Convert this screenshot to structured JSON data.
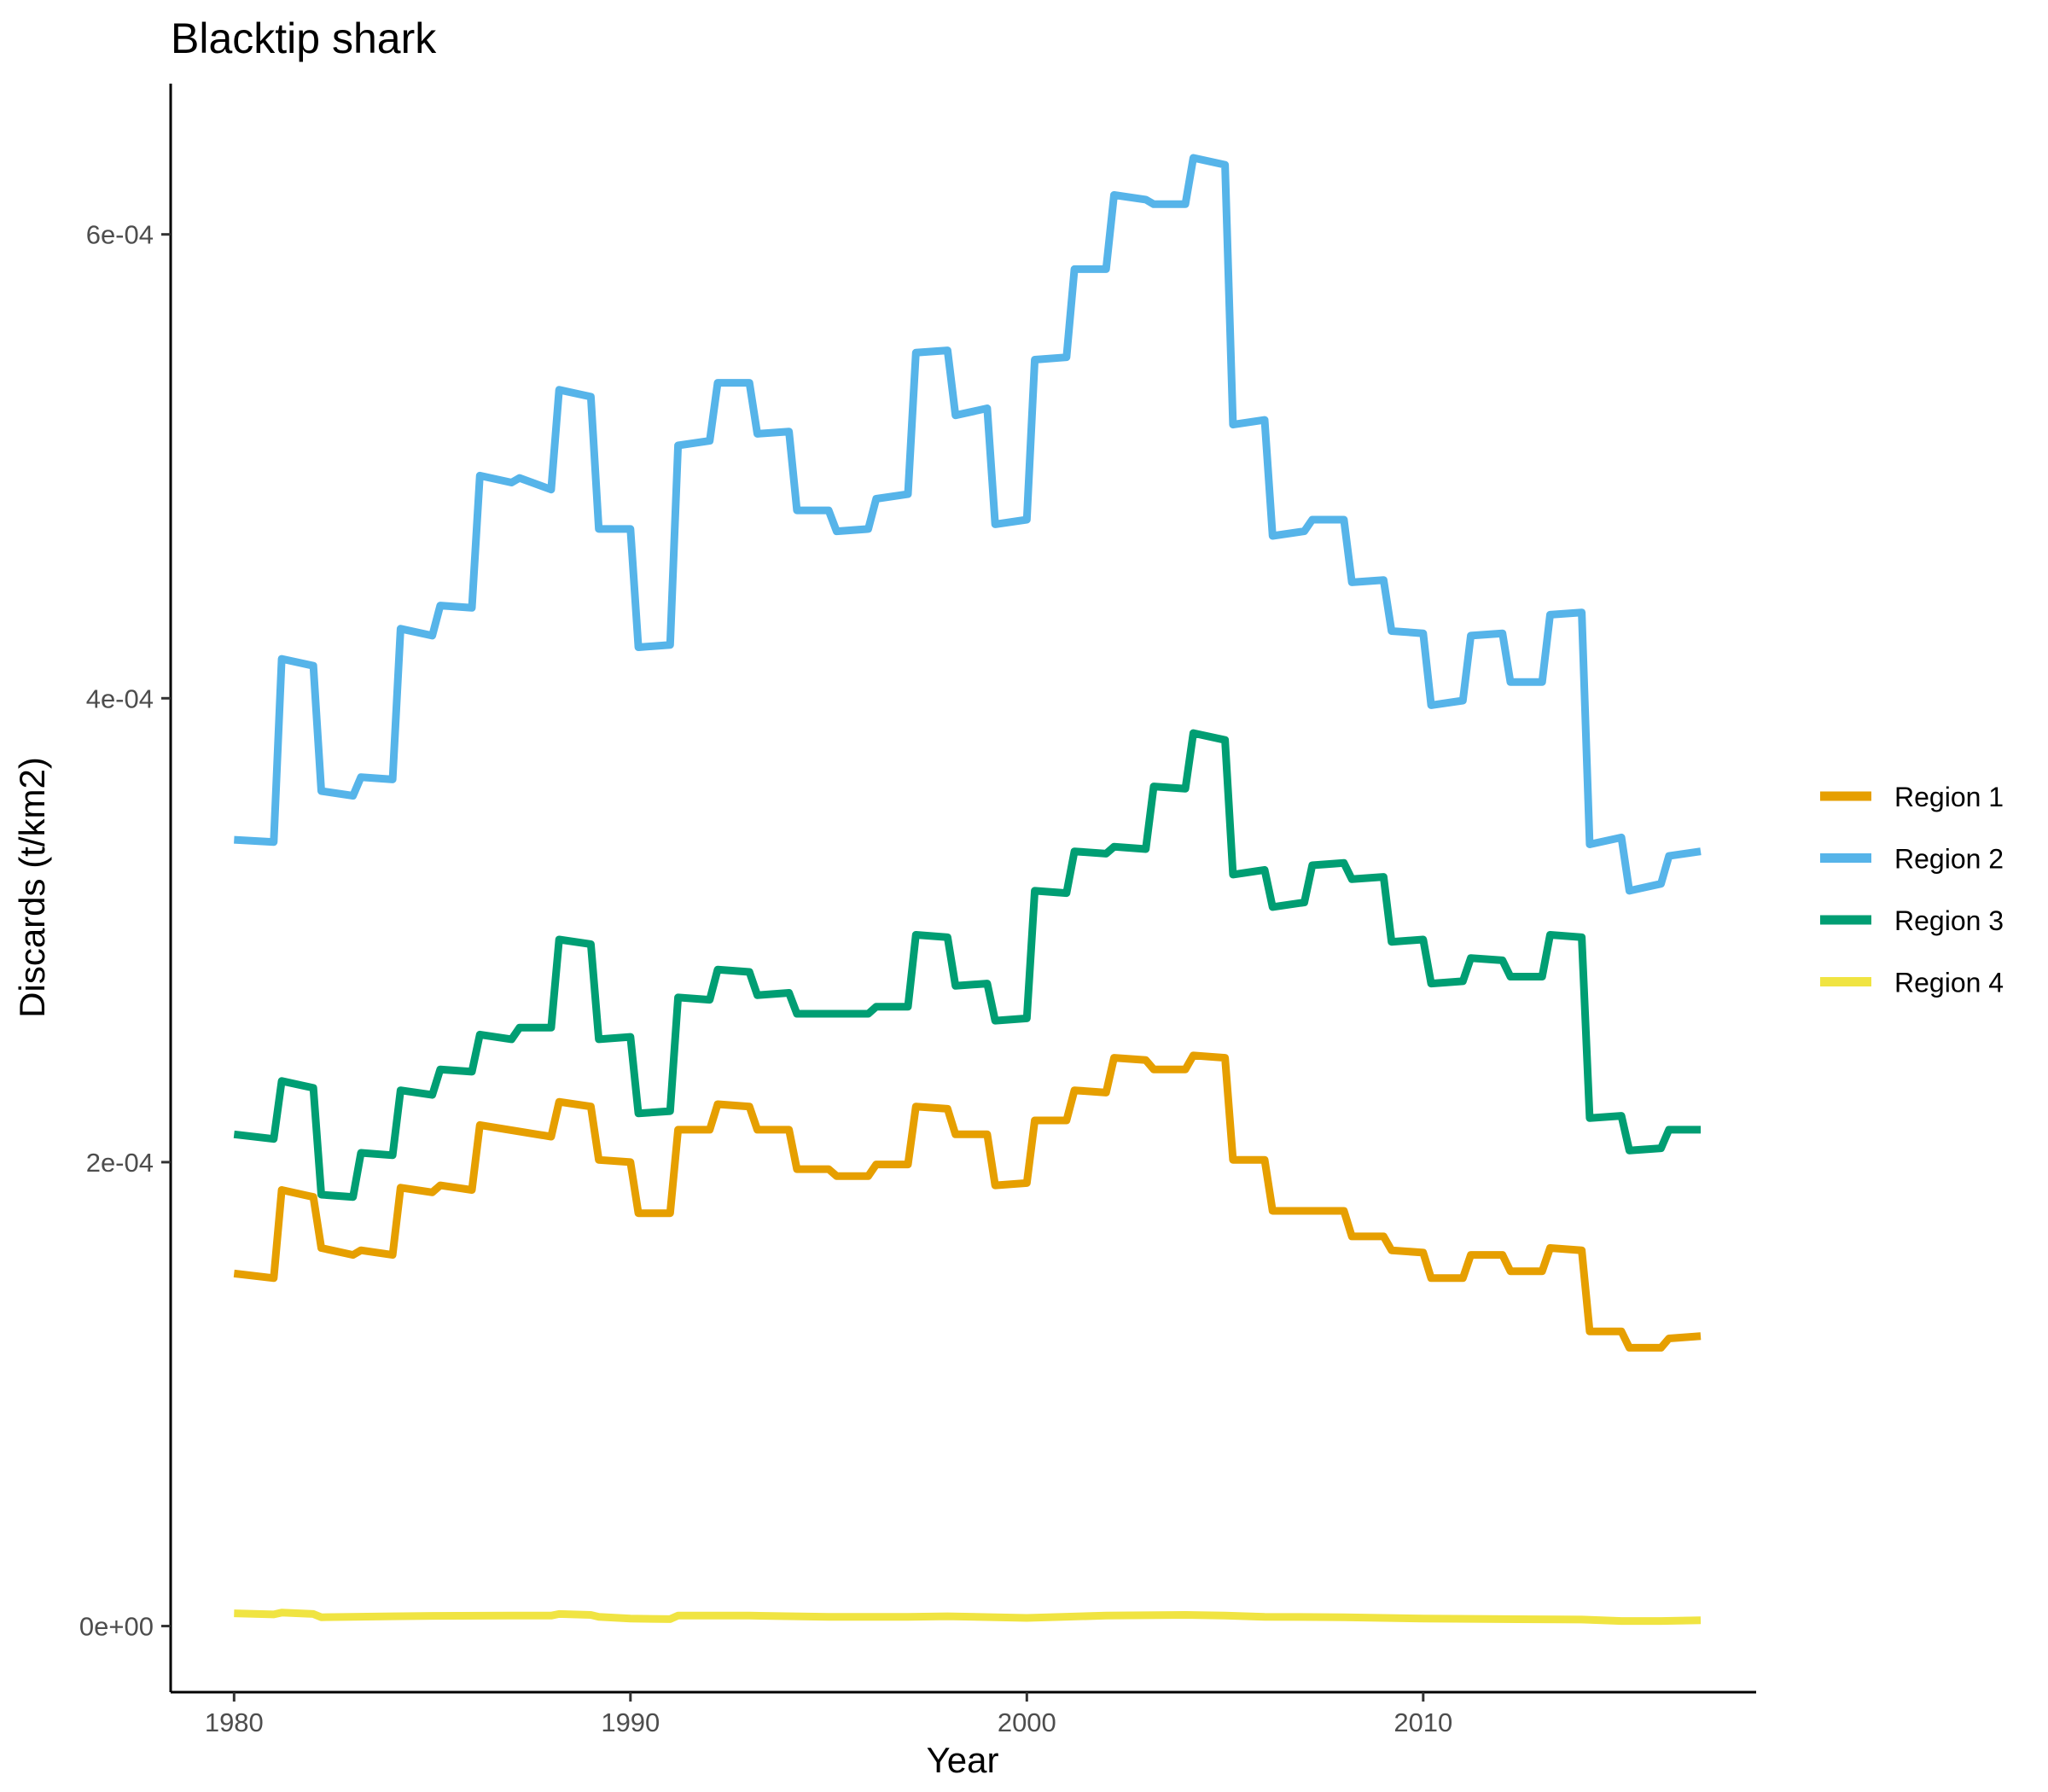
{
  "chart_data": {
    "type": "line",
    "title": "Blacktip shark",
    "xlabel": "Year",
    "ylabel": "Discards (t/km2)",
    "xlim": [
      1978.4,
      2018.4
    ],
    "ylim": [
      -2.85e-05,
      0.000665
    ],
    "x_ticks": [
      1980,
      1990,
      2000,
      2010
    ],
    "x_tick_labels": [
      "1980",
      "1990",
      "2000",
      "2010"
    ],
    "y_ticks": [
      0,
      0.0002,
      0.0004,
      0.0006
    ],
    "y_tick_labels": [
      "0e+00",
      "2e-04",
      "4e-04",
      "6e-04"
    ],
    "grid": false,
    "legend": {
      "position": "right"
    },
    "series": [
      {
        "name": "Region 1",
        "color": "#E69F00",
        "points": [
          [
            1980,
            0.000152
          ],
          [
            1981,
            0.00015
          ],
          [
            1981.2,
            0.000188
          ],
          [
            1982,
            0.000185
          ],
          [
            1982.2,
            0.000163
          ],
          [
            1983,
            0.00016
          ],
          [
            1983.2,
            0.000162
          ],
          [
            1984,
            0.00016
          ],
          [
            1984.2,
            0.000189
          ],
          [
            1985,
            0.000187
          ],
          [
            1985.2,
            0.00019
          ],
          [
            1986,
            0.000188
          ],
          [
            1986.2,
            0.000216
          ],
          [
            1988,
            0.000211
          ],
          [
            1988.2,
            0.000226
          ],
          [
            1989,
            0.000224
          ],
          [
            1989.2,
            0.000201
          ],
          [
            1990,
            0.0002
          ],
          [
            1990.2,
            0.000178
          ],
          [
            1991,
            0.000178
          ],
          [
            1991.2,
            0.000214
          ],
          [
            1992,
            0.000214
          ],
          [
            1992.2,
            0.000225
          ],
          [
            1993,
            0.000224
          ],
          [
            1993.2,
            0.000214
          ],
          [
            1994,
            0.000214
          ],
          [
            1994.2,
            0.000197
          ],
          [
            1995,
            0.000197
          ],
          [
            1995.2,
            0.000194
          ],
          [
            1996,
            0.000194
          ],
          [
            1996.2,
            0.000199
          ],
          [
            1997,
            0.000199
          ],
          [
            1997.2,
            0.000224
          ],
          [
            1998,
            0.000223
          ],
          [
            1998.2,
            0.000212
          ],
          [
            1999,
            0.000212
          ],
          [
            1999.2,
            0.00019
          ],
          [
            2000,
            0.000191
          ],
          [
            2000.2,
            0.000218
          ],
          [
            2001,
            0.000218
          ],
          [
            2001.2,
            0.000231
          ],
          [
            2002,
            0.00023
          ],
          [
            2002.2,
            0.000245
          ],
          [
            2003,
            0.000244
          ],
          [
            2003.2,
            0.00024
          ],
          [
            2004,
            0.00024
          ],
          [
            2004.2,
            0.000246
          ],
          [
            2005,
            0.000245
          ],
          [
            2005.2,
            0.000201
          ],
          [
            2006,
            0.000201
          ],
          [
            2006.2,
            0.000179
          ],
          [
            2008,
            0.000179
          ],
          [
            2008.2,
            0.000168
          ],
          [
            2009,
            0.000168
          ],
          [
            2009.2,
            0.000162
          ],
          [
            2010,
            0.000161
          ],
          [
            2010.2,
            0.00015
          ],
          [
            2011,
            0.00015
          ],
          [
            2011.2,
            0.00016
          ],
          [
            2012,
            0.00016
          ],
          [
            2012.2,
            0.000153
          ],
          [
            2013,
            0.000153
          ],
          [
            2013.2,
            0.000163
          ],
          [
            2014,
            0.000162
          ],
          [
            2014.2,
            0.000127
          ],
          [
            2015,
            0.000127
          ],
          [
            2015.2,
            0.00012
          ],
          [
            2016,
            0.00012
          ],
          [
            2016.2,
            0.000124
          ],
          [
            2017,
            0.000125
          ]
        ]
      },
      {
        "name": "Region 2",
        "color": "#56B4E9",
        "points": [
          [
            1980,
            0.000339
          ],
          [
            1981,
            0.000338
          ],
          [
            1981.2,
            0.000417
          ],
          [
            1982,
            0.000414
          ],
          [
            1982.2,
            0.00036
          ],
          [
            1983,
            0.000358
          ],
          [
            1983.2,
            0.000366
          ],
          [
            1984,
            0.000365
          ],
          [
            1984.2,
            0.00043
          ],
          [
            1985,
            0.000427
          ],
          [
            1985.2,
            0.00044
          ],
          [
            1986,
            0.000439
          ],
          [
            1986.2,
            0.000496
          ],
          [
            1987,
            0.000493
          ],
          [
            1987.2,
            0.000495
          ],
          [
            1988,
            0.00049
          ],
          [
            1988.2,
            0.000533
          ],
          [
            1989,
            0.00053
          ],
          [
            1989.2,
            0.000473
          ],
          [
            1990,
            0.000473
          ],
          [
            1990.2,
            0.000422
          ],
          [
            1991,
            0.000423
          ],
          [
            1991.2,
            0.000509
          ],
          [
            1992,
            0.000511
          ],
          [
            1992.2,
            0.000536
          ],
          [
            1993,
            0.000536
          ],
          [
            1993.2,
            0.000514
          ],
          [
            1994,
            0.000515
          ],
          [
            1994.2,
            0.000481
          ],
          [
            1995,
            0.000481
          ],
          [
            1995.2,
            0.000472
          ],
          [
            1996,
            0.000473
          ],
          [
            1996.2,
            0.000486
          ],
          [
            1997,
            0.000488
          ],
          [
            1997.2,
            0.000549
          ],
          [
            1998,
            0.00055
          ],
          [
            1998.2,
            0.000522
          ],
          [
            1999,
            0.000525
          ],
          [
            1999.2,
            0.000475
          ],
          [
            2000,
            0.000477
          ],
          [
            2000.2,
            0.000546
          ],
          [
            2001,
            0.000547
          ],
          [
            2001.2,
            0.000585
          ],
          [
            2002,
            0.000585
          ],
          [
            2002.2,
            0.000617
          ],
          [
            2003,
            0.000615
          ],
          [
            2003.2,
            0.000613
          ],
          [
            2004,
            0.000613
          ],
          [
            2004.2,
            0.000633
          ],
          [
            2005,
            0.00063
          ],
          [
            2005.2,
            0.000518
          ],
          [
            2006,
            0.00052
          ],
          [
            2006.2,
            0.00047
          ],
          [
            2007,
            0.000472
          ],
          [
            2007.2,
            0.000477
          ],
          [
            2008,
            0.000477
          ],
          [
            2008.2,
            0.00045
          ],
          [
            2009,
            0.000451
          ],
          [
            2009.2,
            0.000429
          ],
          [
            2010,
            0.000428
          ],
          [
            2010.2,
            0.000397
          ],
          [
            2011,
            0.000399
          ],
          [
            2011.2,
            0.000427
          ],
          [
            2012,
            0.000428
          ],
          [
            2012.2,
            0.000407
          ],
          [
            2013,
            0.000407
          ],
          [
            2013.2,
            0.000436
          ],
          [
            2014,
            0.000437
          ],
          [
            2014.2,
            0.000337
          ],
          [
            2015,
            0.00034
          ],
          [
            2015.2,
            0.000317
          ],
          [
            2016,
            0.00032
          ],
          [
            2016.2,
            0.000332
          ],
          [
            2017,
            0.000334
          ]
        ]
      },
      {
        "name": "Region 3",
        "color": "#009E73",
        "points": [
          [
            1980,
            0.000212
          ],
          [
            1981,
            0.00021
          ],
          [
            1981.2,
            0.000235
          ],
          [
            1982,
            0.000232
          ],
          [
            1982.2,
            0.000186
          ],
          [
            1983,
            0.000185
          ],
          [
            1983.2,
            0.000204
          ],
          [
            1984,
            0.000203
          ],
          [
            1984.2,
            0.000231
          ],
          [
            1985,
            0.000229
          ],
          [
            1985.2,
            0.00024
          ],
          [
            1986,
            0.000239
          ],
          [
            1986.2,
            0.000255
          ],
          [
            1987,
            0.000253
          ],
          [
            1987.2,
            0.000258
          ],
          [
            1988,
            0.000258
          ],
          [
            1988.2,
            0.000296
          ],
          [
            1989,
            0.000294
          ],
          [
            1989.2,
            0.000253
          ],
          [
            1990,
            0.000254
          ],
          [
            1990.2,
            0.000221
          ],
          [
            1991,
            0.000222
          ],
          [
            1991.2,
            0.000271
          ],
          [
            1992,
            0.00027
          ],
          [
            1992.2,
            0.000283
          ],
          [
            1993,
            0.000282
          ],
          [
            1993.2,
            0.000272
          ],
          [
            1994,
            0.000273
          ],
          [
            1994.2,
            0.000264
          ],
          [
            1995,
            0.000264
          ],
          [
            1995.2,
            0.000264
          ],
          [
            1996,
            0.000264
          ],
          [
            1996.2,
            0.000267
          ],
          [
            1997,
            0.000267
          ],
          [
            1997.2,
            0.000298
          ],
          [
            1998,
            0.000297
          ],
          [
            1998.2,
            0.000276
          ],
          [
            1999,
            0.000277
          ],
          [
            1999.2,
            0.000261
          ],
          [
            2000,
            0.000262
          ],
          [
            2000.2,
            0.000317
          ],
          [
            2001,
            0.000316
          ],
          [
            2001.2,
            0.000334
          ],
          [
            2002,
            0.000333
          ],
          [
            2002.2,
            0.000336
          ],
          [
            2003,
            0.000335
          ],
          [
            2003.2,
            0.000362
          ],
          [
            2004,
            0.000361
          ],
          [
            2004.2,
            0.000385
          ],
          [
            2005,
            0.000382
          ],
          [
            2005.2,
            0.000324
          ],
          [
            2006,
            0.000326
          ],
          [
            2006.2,
            0.00031
          ],
          [
            2007,
            0.000312
          ],
          [
            2007.2,
            0.000328
          ],
          [
            2008,
            0.000329
          ],
          [
            2008.2,
            0.000322
          ],
          [
            2009,
            0.000323
          ],
          [
            2009.2,
            0.000295
          ],
          [
            2010,
            0.000296
          ],
          [
            2010.2,
            0.000277
          ],
          [
            2011,
            0.000278
          ],
          [
            2011.2,
            0.000288
          ],
          [
            2012,
            0.000287
          ],
          [
            2012.2,
            0.00028
          ],
          [
            2013,
            0.00028
          ],
          [
            2013.2,
            0.000298
          ],
          [
            2014,
            0.000297
          ],
          [
            2014.2,
            0.000219
          ],
          [
            2015,
            0.00022
          ],
          [
            2015.2,
            0.000205
          ],
          [
            2016,
            0.000206
          ],
          [
            2016.2,
            0.000214
          ],
          [
            2017,
            0.000214
          ]
        ]
      },
      {
        "name": "Region 4",
        "color": "#F0E442",
        "points": [
          [
            1980,
            5.5e-06
          ],
          [
            1981,
            5e-06
          ],
          [
            1981.2,
            5.8e-06
          ],
          [
            1982,
            5.2e-06
          ],
          [
            1982.2,
            3.8e-06
          ],
          [
            1984,
            4.2e-06
          ],
          [
            1985,
            4.4e-06
          ],
          [
            1987,
            4.5e-06
          ],
          [
            1988,
            4.5e-06
          ],
          [
            1988.2,
            5.2e-06
          ],
          [
            1989,
            4.8e-06
          ],
          [
            1989.2,
            4e-06
          ],
          [
            1990,
            3.2e-06
          ],
          [
            1991,
            3e-06
          ],
          [
            1991.2,
            4.5e-06
          ],
          [
            1993,
            4.5e-06
          ],
          [
            1995,
            4e-06
          ],
          [
            1997,
            4e-06
          ],
          [
            1998,
            4.2e-06
          ],
          [
            2000,
            3.5e-06
          ],
          [
            2002,
            4.5e-06
          ],
          [
            2004,
            4.8e-06
          ],
          [
            2005,
            4.5e-06
          ],
          [
            2006,
            4e-06
          ],
          [
            2008,
            3.8e-06
          ],
          [
            2010,
            3.2e-06
          ],
          [
            2012,
            3e-06
          ],
          [
            2014,
            2.8e-06
          ],
          [
            2015,
            2.2e-06
          ],
          [
            2016,
            2.2e-06
          ],
          [
            2017,
            2.5e-06
          ]
        ]
      }
    ]
  }
}
